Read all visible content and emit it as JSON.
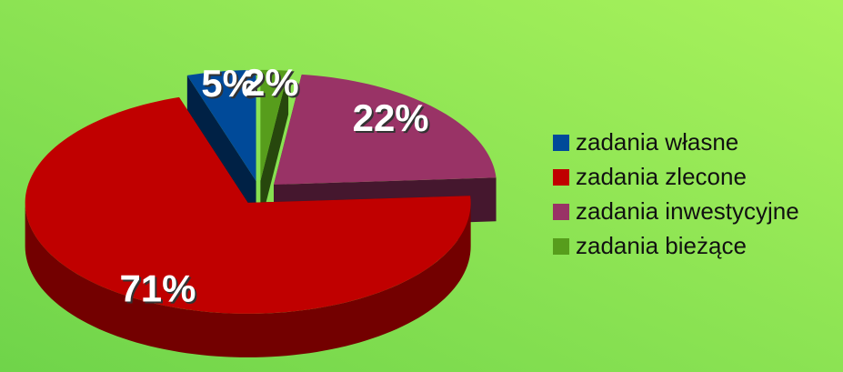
{
  "chart_data": {
    "type": "pie",
    "categories": [
      "zadania własne",
      "zadania zlecone",
      "zadania inwestycyjne",
      "zadania bieżące"
    ],
    "values": [
      5,
      71,
      22,
      2
    ],
    "value_labels": [
      "5%",
      "71%",
      "22%",
      "2%"
    ],
    "colors": [
      "#004a99",
      "#c00000",
      "#993366",
      "#579d1c"
    ],
    "legend": "right"
  }
}
